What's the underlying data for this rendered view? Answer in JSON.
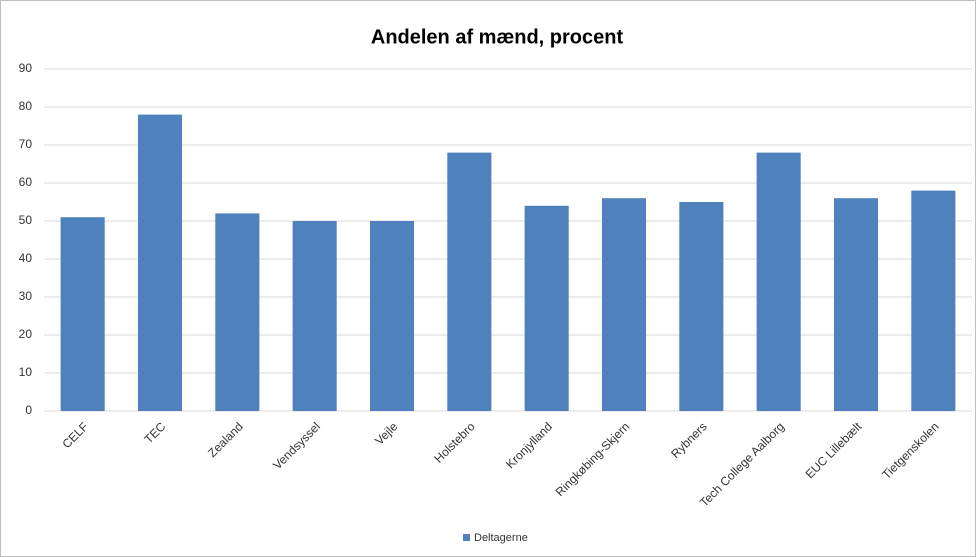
{
  "chart_data": {
    "type": "bar",
    "title": "Andelen af mænd, procent",
    "categories": [
      "CELF",
      "TEC",
      "Zealand",
      "Vendsyssel",
      "Vejle",
      "Holstebro",
      "Kronjylland",
      "Ringkøbing-Skjern",
      "Rybners",
      "Tech College Aalborg",
      "EUC Lillebælt",
      "Tietgenskolen"
    ],
    "series": [
      {
        "name": "Deltagerne",
        "color": "#4f81bd",
        "values": [
          51,
          78,
          52,
          50,
          50,
          68,
          54,
          56,
          55,
          68,
          56,
          58
        ]
      }
    ],
    "ylim": [
      0,
      90
    ],
    "yticks": [
      0,
      10,
      20,
      30,
      40,
      50,
      60,
      70,
      80,
      90
    ],
    "grid": true,
    "legend": "bottom"
  }
}
